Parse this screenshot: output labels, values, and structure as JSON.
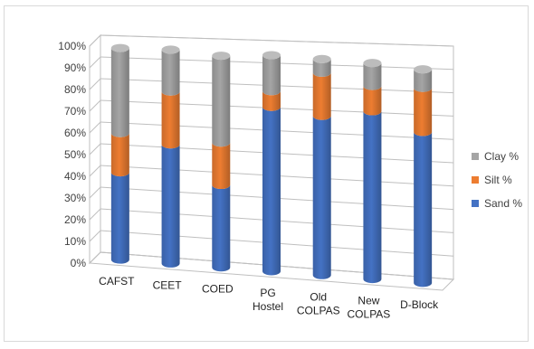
{
  "chart_data": {
    "type": "bar",
    "stacked": true,
    "style": "3d-cylinder",
    "categories": [
      [
        "CAFST"
      ],
      [
        "CEET"
      ],
      [
        "COED"
      ],
      [
        "PG",
        "Hostel"
      ],
      [
        "Old",
        "COLPAS"
      ],
      [
        "New",
        "COLPAS"
      ],
      [
        "D-Block"
      ]
    ],
    "series": [
      {
        "name": "Sand %",
        "color": "#4472c4",
        "values": [
          40,
          54,
          37,
          73,
          70,
          73,
          65
        ]
      },
      {
        "name": "Silt %",
        "color": "#ed7d31",
        "values": [
          18,
          24,
          19,
          7,
          19,
          11,
          19
        ]
      },
      {
        "name": "Clay %",
        "color": "#a5a5a5",
        "values": [
          39,
          19,
          39,
          16,
          6,
          10,
          8
        ]
      }
    ],
    "y_ticks": [
      "0%",
      "10%",
      "20%",
      "30%",
      "40%",
      "50%",
      "60%",
      "70%",
      "80%",
      "90%",
      "100%"
    ],
    "ylim": [
      0,
      100
    ],
    "legend": [
      "Clay %",
      "Silt %",
      "Sand %"
    ],
    "legend_position": "right",
    "grid": true
  }
}
